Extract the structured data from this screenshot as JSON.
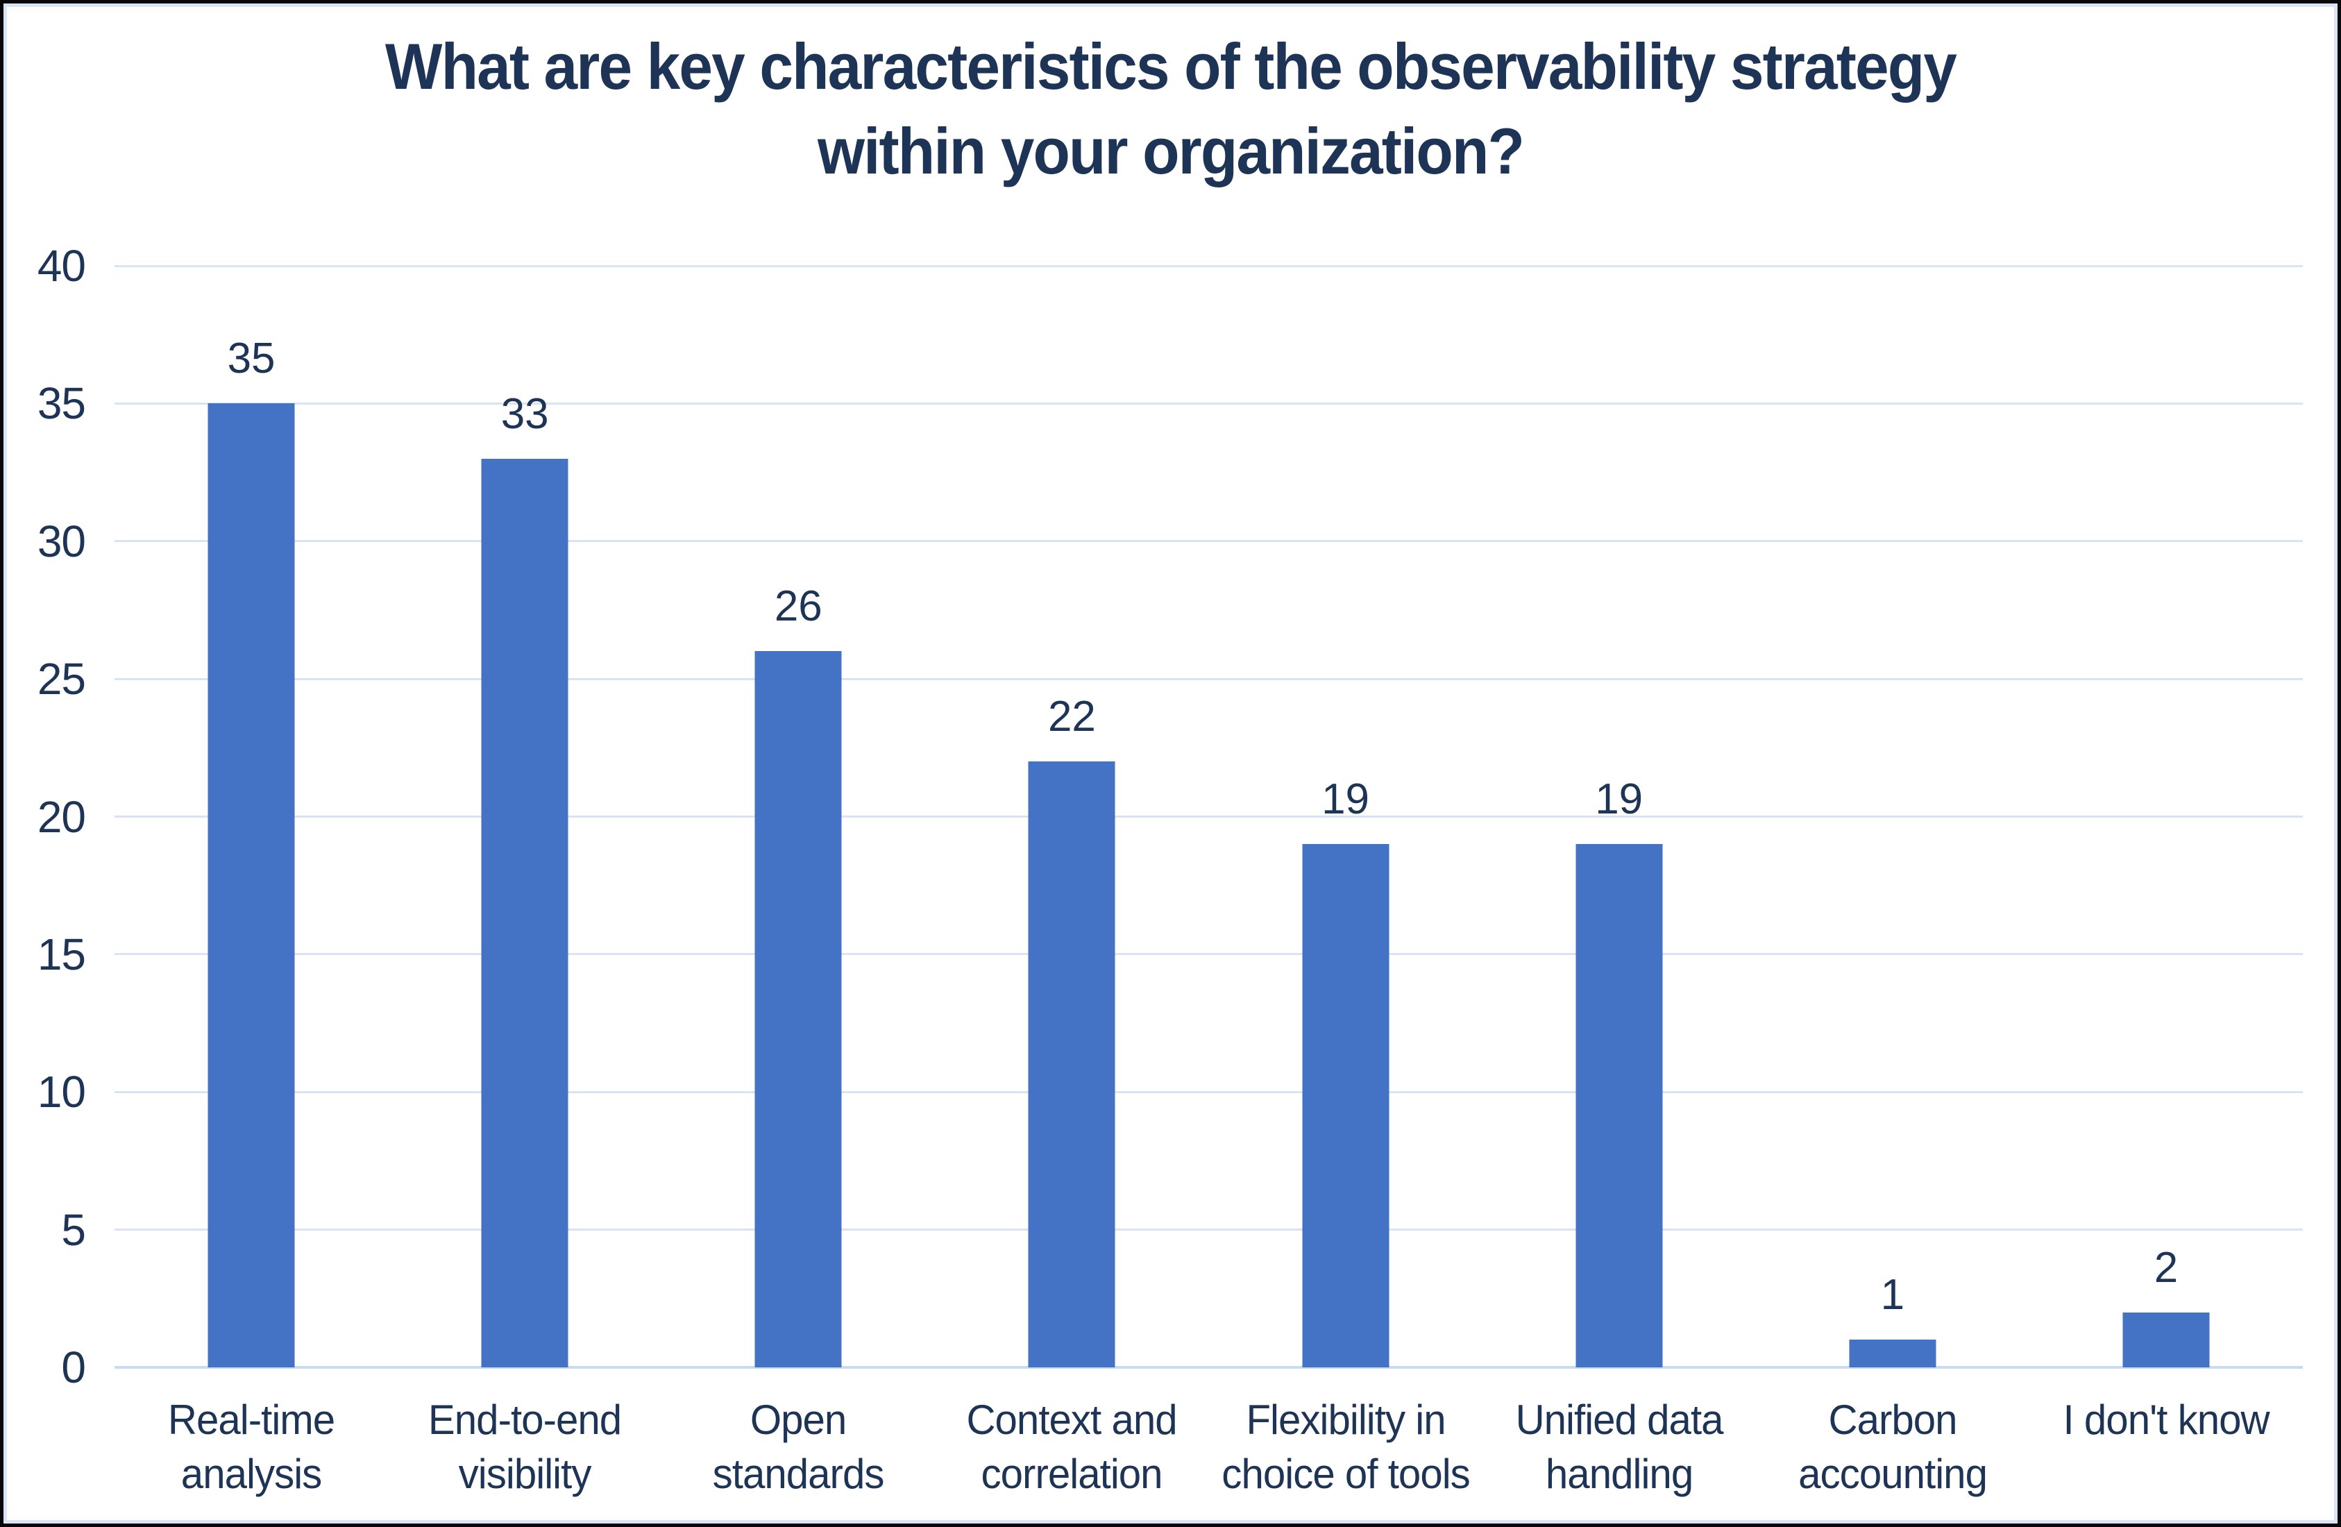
{
  "header": {
    "lines": [
      "What are key characteristics of the observability strategy",
      "within your organization?"
    ]
  },
  "chart_data": {
    "type": "bar",
    "title": "What are key characteristics of the observability strategy within your organization?",
    "categories": [
      "Real-time analysis",
      "End-to-end visibility",
      "Open standards",
      "Context and correlation",
      "Flexibility in choice of tools",
      "Unified data handling",
      "Carbon accounting",
      "I don't know"
    ],
    "values": [
      35,
      33,
      26,
      22,
      19,
      19,
      1,
      2
    ],
    "data_labels": [
      "35",
      "33",
      "26",
      "22",
      "19",
      "19",
      "1",
      "2"
    ],
    "xlabel": "",
    "ylabel": "",
    "ylim": [
      0,
      40
    ],
    "yticks": [
      0,
      5,
      10,
      15,
      20,
      25,
      30,
      35,
      40
    ],
    "grid": "horizontal",
    "legend": "none"
  },
  "axes": {
    "x_labels_lines": [
      [
        "Real-time",
        "analysis"
      ],
      [
        "End-to-end",
        "visibility"
      ],
      [
        "Open",
        "standards"
      ],
      [
        "Context and",
        "correlation"
      ],
      [
        "Flexibility in",
        "choice of tools"
      ],
      [
        "Unified data",
        "handling"
      ],
      [
        "Carbon",
        "accounting"
      ],
      [
        "I don't know"
      ]
    ]
  },
  "colors": {
    "bar": "#4472c4",
    "text": "#1d3456",
    "gridline": "#d9e3f3",
    "axis_line": "#c9dbef",
    "frame_border": "#d9e4f4",
    "outer_border": "#06080c",
    "background": "#ffffff"
  }
}
